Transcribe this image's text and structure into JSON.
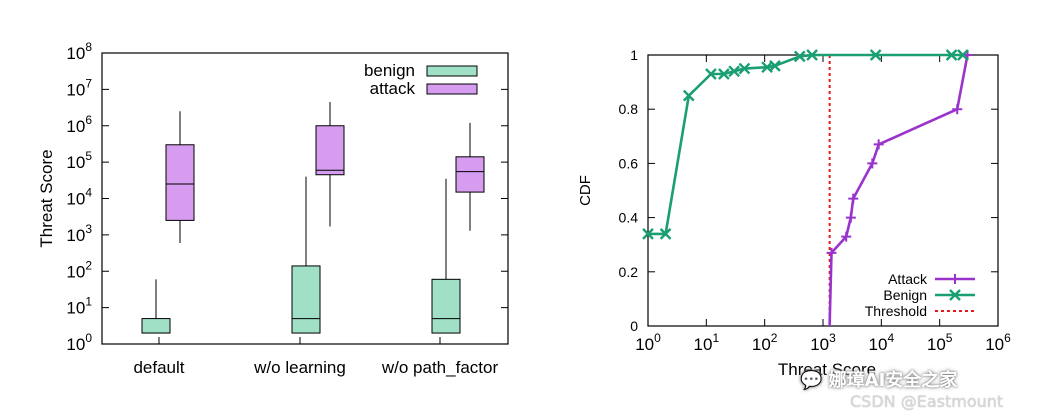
{
  "chart_data": [
    {
      "type": "box",
      "ylabel": "Threat Score",
      "y_scale": "log",
      "ylim": [
        1,
        100000000
      ],
      "y_ticks": [
        {
          "value": 1,
          "exp": "0"
        },
        {
          "value": 10,
          "exp": "1"
        },
        {
          "value": 100,
          "exp": "2"
        },
        {
          "value": 1000,
          "exp": "3"
        },
        {
          "value": 10000,
          "exp": "4"
        },
        {
          "value": 100000,
          "exp": "5"
        },
        {
          "value": 1000000,
          "exp": "6"
        },
        {
          "value": 10000000,
          "exp": "7"
        },
        {
          "value": 100000000,
          "exp": "8"
        }
      ],
      "y_tick_base": "10",
      "categories": [
        "default",
        "w/o learning",
        "w/o path_factor"
      ],
      "legend": {
        "placement": "top-right",
        "entries": [
          "benign",
          "attack"
        ]
      },
      "colors": {
        "benign": "#9fe0c6",
        "attack": "#d59cf0"
      },
      "series": [
        {
          "name": "benign",
          "boxes": [
            {
              "min": 2,
              "q1": 2,
              "median": 2,
              "q3": 5,
              "max": 60
            },
            {
              "min": 2,
              "q1": 2,
              "median": 5,
              "q3": 140,
              "max": 40000
            },
            {
              "min": 2,
              "q1": 2,
              "median": 5,
              "q3": 60,
              "max": 35000
            }
          ]
        },
        {
          "name": "attack",
          "boxes": [
            {
              "min": 600,
              "q1": 2500,
              "median": 25000,
              "q3": 300000,
              "max": 2500000
            },
            {
              "min": 1700,
              "q1": 45000,
              "median": 60000,
              "q3": 1000000,
              "max": 4500000
            },
            {
              "min": 1300,
              "q1": 15000,
              "median": 55000,
              "q3": 140000,
              "max": 1200000
            }
          ]
        }
      ]
    },
    {
      "type": "line",
      "ylabel": "CDF",
      "xlabel": "Threat Score",
      "x_scale": "log",
      "xlim": [
        1,
        1000000
      ],
      "ylim": [
        0,
        1
      ],
      "x_ticks": [
        {
          "value": 1,
          "exp": "0"
        },
        {
          "value": 10,
          "exp": "1"
        },
        {
          "value": 100,
          "exp": "2"
        },
        {
          "value": 1000,
          "exp": "3"
        },
        {
          "value": 10000,
          "exp": "4"
        },
        {
          "value": 100000,
          "exp": "5"
        },
        {
          "value": 1000000,
          "exp": "6"
        }
      ],
      "x_tick_base": "10",
      "y_ticks": [
        {
          "value": 0,
          "label": "0"
        },
        {
          "value": 0.2,
          "label": "0.2"
        },
        {
          "value": 0.4,
          "label": "0.4"
        },
        {
          "value": 0.6,
          "label": "0.6"
        },
        {
          "value": 0.8,
          "label": "0.8"
        },
        {
          "value": 1,
          "label": "1"
        }
      ],
      "legend": {
        "placement": "bottom-right",
        "entries": [
          "Attack",
          "Benign",
          "Threshold"
        ]
      },
      "threshold": {
        "name": "Threshold",
        "x": 1300,
        "color": "#e31a1c"
      },
      "series": [
        {
          "name": "Attack",
          "color": "#9933cc",
          "marker": "plus",
          "points": [
            [
              1300,
              0
            ],
            [
              1400,
              0.27
            ],
            [
              2500,
              0.33
            ],
            [
              3000,
              0.4
            ],
            [
              3300,
              0.47
            ],
            [
              7000,
              0.6
            ],
            [
              9000,
              0.67
            ],
            [
              200000,
              0.8
            ],
            [
              300000,
              1.0
            ]
          ]
        },
        {
          "name": "Benign",
          "color": "#1a9e73",
          "marker": "cross",
          "points": [
            [
              1,
              0.34
            ],
            [
              2,
              0.34
            ],
            [
              5,
              0.85
            ],
            [
              12,
              0.93
            ],
            [
              20,
              0.93
            ],
            [
              30,
              0.94
            ],
            [
              45,
              0.95
            ],
            [
              110,
              0.955
            ],
            [
              150,
              0.96
            ],
            [
              400,
              0.995
            ],
            [
              650,
              1.0
            ],
            [
              8000,
              1.0
            ],
            [
              160000,
              1.0
            ],
            [
              250000,
              1.0
            ]
          ]
        }
      ]
    }
  ],
  "watermark": {
    "logo_text": "💬 娜璋AI安全之家",
    "csdn_text": "CSDN @Eastmount"
  }
}
